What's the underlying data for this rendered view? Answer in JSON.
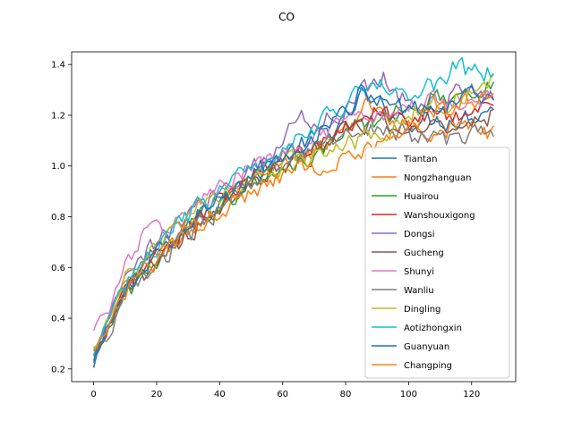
{
  "chart_data": {
    "type": "line",
    "title": "CO",
    "xlabel": "",
    "ylabel": "",
    "xlim": [
      -7,
      134
    ],
    "ylim": [
      0.15,
      1.45
    ],
    "xticks": [
      0,
      20,
      40,
      60,
      80,
      100,
      120
    ],
    "yticks": [
      0.2,
      0.4,
      0.6,
      0.8,
      1.0,
      1.2,
      1.4
    ],
    "xtick_labels": [
      "0",
      "20",
      "40",
      "60",
      "80",
      "100",
      "120"
    ],
    "ytick_labels": [
      "0.2",
      "0.4",
      "0.6",
      "0.8",
      "1.0",
      "1.2",
      "1.4"
    ],
    "grid": false,
    "legend_position": "lower-right",
    "x_range": [
      0,
      127
    ],
    "series": [
      {
        "name": "Tiantan",
        "color": "#1f77b4",
        "anchors": [
          [
            0,
            0.2
          ],
          [
            5,
            0.38
          ],
          [
            10,
            0.52
          ],
          [
            20,
            0.66
          ],
          [
            30,
            0.76
          ],
          [
            40,
            0.86
          ],
          [
            50,
            0.95
          ],
          [
            60,
            1.04
          ],
          [
            70,
            1.11
          ],
          [
            80,
            1.17
          ],
          [
            85,
            1.28
          ],
          [
            90,
            1.24
          ],
          [
            100,
            1.18
          ],
          [
            110,
            1.18
          ],
          [
            120,
            1.2
          ],
          [
            127,
            1.24
          ]
        ]
      },
      {
        "name": "Nongzhanguan",
        "color": "#ff7f0e",
        "anchors": [
          [
            0,
            0.25
          ],
          [
            5,
            0.4
          ],
          [
            10,
            0.53
          ],
          [
            20,
            0.65
          ],
          [
            30,
            0.74
          ],
          [
            40,
            0.84
          ],
          [
            50,
            0.92
          ],
          [
            60,
            0.99
          ],
          [
            70,
            1.06
          ],
          [
            80,
            1.13
          ],
          [
            85,
            1.24
          ],
          [
            90,
            1.22
          ],
          [
            100,
            1.16
          ],
          [
            110,
            1.14
          ],
          [
            120,
            1.16
          ],
          [
            127,
            1.12
          ]
        ]
      },
      {
        "name": "Huairou",
        "color": "#2ca02c",
        "anchors": [
          [
            0,
            0.26
          ],
          [
            5,
            0.36
          ],
          [
            10,
            0.5
          ],
          [
            20,
            0.63
          ],
          [
            30,
            0.75
          ],
          [
            40,
            0.85
          ],
          [
            50,
            0.92
          ],
          [
            60,
            1.0
          ],
          [
            70,
            1.05
          ],
          [
            80,
            1.12
          ],
          [
            90,
            1.18
          ],
          [
            100,
            1.24
          ],
          [
            110,
            1.27
          ],
          [
            120,
            1.3
          ],
          [
            127,
            1.33
          ]
        ]
      },
      {
        "name": "Wanshouxigong",
        "color": "#d62728",
        "anchors": [
          [
            0,
            0.24
          ],
          [
            5,
            0.38
          ],
          [
            10,
            0.51
          ],
          [
            20,
            0.65
          ],
          [
            30,
            0.76
          ],
          [
            40,
            0.86
          ],
          [
            50,
            0.95
          ],
          [
            60,
            1.03
          ],
          [
            70,
            1.09
          ],
          [
            80,
            1.16
          ],
          [
            85,
            1.2
          ],
          [
            90,
            1.22
          ],
          [
            100,
            1.18
          ],
          [
            110,
            1.2
          ],
          [
            120,
            1.21
          ],
          [
            127,
            1.25
          ]
        ]
      },
      {
        "name": "Dongsi",
        "color": "#9467bd",
        "anchors": [
          [
            0,
            0.27
          ],
          [
            5,
            0.4
          ],
          [
            10,
            0.55
          ],
          [
            20,
            0.7
          ],
          [
            30,
            0.8
          ],
          [
            40,
            0.91
          ],
          [
            50,
            1.0
          ],
          [
            60,
            1.08
          ],
          [
            65,
            1.22
          ],
          [
            70,
            1.16
          ],
          [
            80,
            1.22
          ],
          [
            85,
            1.3
          ],
          [
            92,
            1.36
          ],
          [
            100,
            1.24
          ],
          [
            110,
            1.26
          ],
          [
            120,
            1.3
          ],
          [
            127,
            1.29
          ]
        ]
      },
      {
        "name": "Gucheng",
        "color": "#8c564b",
        "anchors": [
          [
            0,
            0.24
          ],
          [
            5,
            0.36
          ],
          [
            10,
            0.49
          ],
          [
            20,
            0.63
          ],
          [
            30,
            0.73
          ],
          [
            40,
            0.84
          ],
          [
            50,
            0.93
          ],
          [
            60,
            1.02
          ],
          [
            70,
            1.08
          ],
          [
            80,
            1.14
          ],
          [
            90,
            1.17
          ],
          [
            100,
            1.14
          ],
          [
            110,
            1.16
          ],
          [
            120,
            1.18
          ],
          [
            127,
            1.2
          ]
        ]
      },
      {
        "name": "Shunyi",
        "color": "#e377c2",
        "anchors": [
          [
            0,
            0.37
          ],
          [
            5,
            0.44
          ],
          [
            10,
            0.6
          ],
          [
            15,
            0.73
          ],
          [
            20,
            0.74
          ],
          [
            30,
            0.82
          ],
          [
            40,
            0.92
          ],
          [
            50,
            0.98
          ],
          [
            60,
            1.05
          ],
          [
            70,
            1.1
          ],
          [
            80,
            1.16
          ],
          [
            90,
            1.2
          ],
          [
            100,
            1.24
          ],
          [
            110,
            1.27
          ],
          [
            120,
            1.26
          ],
          [
            127,
            1.28
          ]
        ]
      },
      {
        "name": "Wanliu",
        "color": "#7f7f7f",
        "anchors": [
          [
            0,
            0.24
          ],
          [
            5,
            0.34
          ],
          [
            10,
            0.48
          ],
          [
            20,
            0.62
          ],
          [
            30,
            0.72
          ],
          [
            40,
            0.83
          ],
          [
            50,
            0.91
          ],
          [
            60,
            1.0
          ],
          [
            70,
            1.06
          ],
          [
            80,
            1.13
          ],
          [
            90,
            1.16
          ],
          [
            100,
            1.12
          ],
          [
            110,
            1.1
          ],
          [
            120,
            1.12
          ],
          [
            127,
            1.14
          ]
        ]
      },
      {
        "name": "Dingling",
        "color": "#bcbd22",
        "anchors": [
          [
            0,
            0.29
          ],
          [
            5,
            0.4
          ],
          [
            10,
            0.55
          ],
          [
            20,
            0.68
          ],
          [
            30,
            0.8
          ],
          [
            40,
            0.88
          ],
          [
            50,
            0.95
          ],
          [
            60,
            1.0
          ],
          [
            70,
            1.04
          ],
          [
            80,
            1.08
          ],
          [
            90,
            1.12
          ],
          [
            100,
            1.2
          ],
          [
            110,
            1.24
          ],
          [
            120,
            1.3
          ],
          [
            127,
            1.33
          ]
        ]
      },
      {
        "name": "Aotizhongxin",
        "color": "#17becf",
        "anchors": [
          [
            0,
            0.26
          ],
          [
            5,
            0.4
          ],
          [
            10,
            0.54
          ],
          [
            20,
            0.68
          ],
          [
            30,
            0.8
          ],
          [
            40,
            0.9
          ],
          [
            50,
            0.99
          ],
          [
            60,
            1.08
          ],
          [
            70,
            1.16
          ],
          [
            80,
            1.24
          ],
          [
            85,
            1.32
          ],
          [
            90,
            1.32
          ],
          [
            100,
            1.28
          ],
          [
            110,
            1.33
          ],
          [
            115,
            1.4
          ],
          [
            120,
            1.36
          ],
          [
            127,
            1.37
          ]
        ]
      },
      {
        "name": "Guanyuan",
        "color": "#1f77b4",
        "anchors": [
          [
            0,
            0.24
          ],
          [
            5,
            0.38
          ],
          [
            10,
            0.52
          ],
          [
            20,
            0.66
          ],
          [
            30,
            0.77
          ],
          [
            40,
            0.87
          ],
          [
            50,
            0.96
          ],
          [
            60,
            1.05
          ],
          [
            70,
            1.12
          ],
          [
            80,
            1.2
          ],
          [
            85,
            1.3
          ],
          [
            90,
            1.28
          ],
          [
            100,
            1.22
          ],
          [
            110,
            1.24
          ],
          [
            120,
            1.26
          ],
          [
            127,
            1.28
          ]
        ]
      },
      {
        "name": "Changping",
        "color": "#ff7f0e",
        "anchors": [
          [
            0,
            0.28
          ],
          [
            5,
            0.38
          ],
          [
            10,
            0.5
          ],
          [
            20,
            0.63
          ],
          [
            30,
            0.74
          ],
          [
            40,
            0.83
          ],
          [
            50,
            0.9
          ],
          [
            60,
            0.96
          ],
          [
            70,
            1.0
          ],
          [
            80,
            1.04
          ],
          [
            90,
            1.08
          ],
          [
            100,
            1.16
          ],
          [
            110,
            1.22
          ],
          [
            120,
            1.27
          ],
          [
            127,
            1.25
          ]
        ]
      }
    ]
  }
}
